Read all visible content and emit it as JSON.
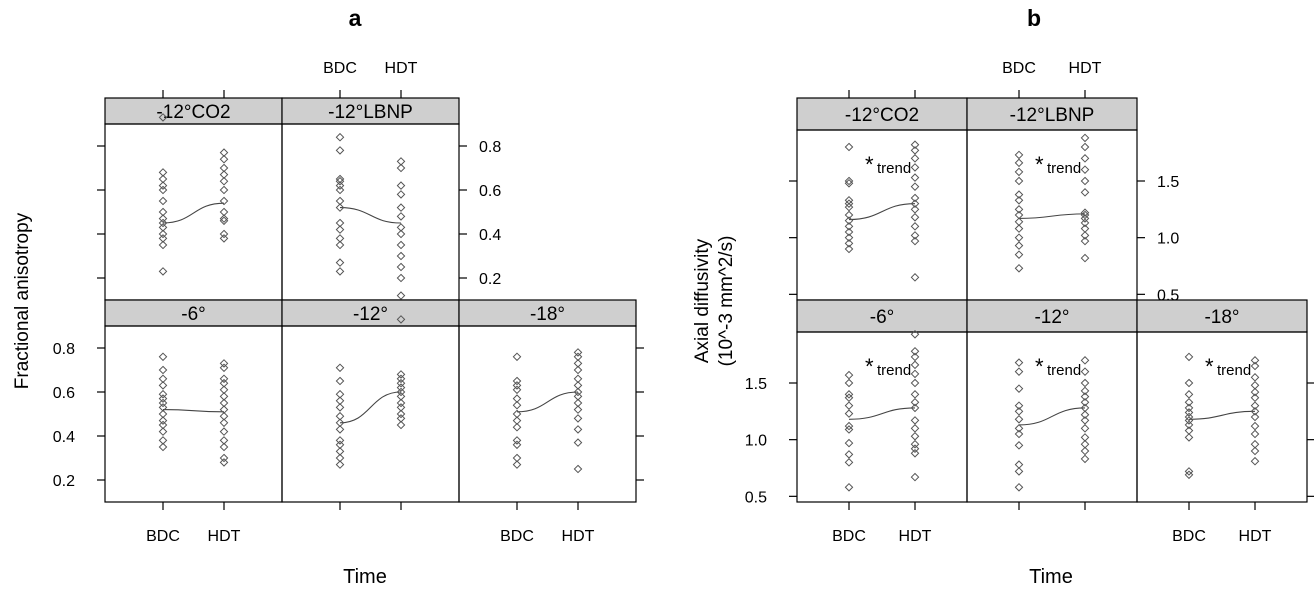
{
  "chart_data": [
    {
      "type": "scatter",
      "title": "a",
      "xlabel": "Time",
      "ylabel": "Fractional anisotropy",
      "categories": [
        "BDC",
        "HDT"
      ],
      "ylim": [
        0.1,
        0.9
      ],
      "yticks": [
        "0.2",
        "0.4",
        "0.6",
        "0.8"
      ],
      "panels": [
        {
          "label": "-12°CO2",
          "line": [
            0.45,
            0.54
          ],
          "annotation": "",
          "BDC": [
            0.93,
            0.68,
            0.65,
            0.62,
            0.6,
            0.55,
            0.5,
            0.47,
            0.45,
            0.43,
            0.4,
            0.38,
            0.35,
            0.23
          ],
          "HDT": [
            0.77,
            0.74,
            0.7,
            0.67,
            0.64,
            0.6,
            0.55,
            0.5,
            0.47,
            0.46,
            0.4,
            0.38
          ]
        },
        {
          "label": "-12°LBNP",
          "line": [
            0.52,
            0.45
          ],
          "annotation": "",
          "BDC": [
            0.84,
            0.78,
            0.65,
            0.64,
            0.62,
            0.6,
            0.55,
            0.52,
            0.45,
            0.42,
            0.38,
            0.35,
            0.27,
            0.23
          ],
          "HDT": [
            0.73,
            0.7,
            0.62,
            0.58,
            0.52,
            0.48,
            0.43,
            0.4,
            0.35,
            0.3,
            0.25,
            0.2,
            0.12
          ]
        },
        {
          "label": "-6°",
          "line": [
            0.52,
            0.51
          ],
          "annotation": "",
          "BDC": [
            0.76,
            0.7,
            0.66,
            0.63,
            0.59,
            0.57,
            0.55,
            0.53,
            0.5,
            0.47,
            0.45,
            0.42,
            0.38,
            0.35
          ],
          "HDT": [
            0.73,
            0.71,
            0.66,
            0.64,
            0.61,
            0.58,
            0.55,
            0.52,
            0.49,
            0.46,
            0.42,
            0.38,
            0.35,
            0.3,
            0.28
          ]
        },
        {
          "label": "-12°",
          "line": [
            0.46,
            0.6
          ],
          "annotation": "",
          "BDC": [
            0.71,
            0.65,
            0.59,
            0.56,
            0.53,
            0.49,
            0.46,
            0.43,
            0.38,
            0.36,
            0.33,
            0.3,
            0.27
          ],
          "HDT": [
            0.93,
            0.68,
            0.66,
            0.64,
            0.62,
            0.6,
            0.58,
            0.55,
            0.53,
            0.5,
            0.48,
            0.45
          ]
        },
        {
          "label": "-18°",
          "line": [
            0.51,
            0.6
          ],
          "annotation": "",
          "BDC": [
            0.76,
            0.65,
            0.63,
            0.61,
            0.57,
            0.54,
            0.5,
            0.47,
            0.44,
            0.38,
            0.36,
            0.3,
            0.27
          ],
          "HDT": [
            0.78,
            0.76,
            0.73,
            0.7,
            0.66,
            0.63,
            0.6,
            0.58,
            0.55,
            0.52,
            0.48,
            0.43,
            0.37,
            0.25
          ]
        }
      ]
    },
    {
      "type": "scatter",
      "title": "b",
      "xlabel": "Time",
      "ylabel": "Axial diffusivity\n(10^-3 mm^2/s)",
      "categories": [
        "BDC",
        "HDT"
      ],
      "ylim": [
        0.45,
        1.95
      ],
      "yticks": [
        "0.5",
        "1.0",
        "1.5"
      ],
      "panels": [
        {
          "label": "-12°CO2",
          "line": [
            1.16,
            1.3
          ],
          "annotation": "trend",
          "BDC": [
            1.8,
            1.5,
            1.48,
            1.33,
            1.3,
            1.27,
            1.2,
            1.15,
            1.1,
            1.05,
            1.0,
            0.95,
            0.9
          ],
          "HDT": [
            1.82,
            1.77,
            1.7,
            1.62,
            1.53,
            1.45,
            1.35,
            1.3,
            1.25,
            1.18,
            1.1,
            1.02,
            0.97,
            0.65
          ]
        },
        {
          "label": "-12°LBNP",
          "line": [
            1.17,
            1.21
          ],
          "annotation": "trend",
          "BDC": [
            1.73,
            1.66,
            1.58,
            1.5,
            1.38,
            1.33,
            1.25,
            1.2,
            1.14,
            1.08,
            1.0,
            0.93,
            0.85,
            0.73
          ],
          "HDT": [
            1.88,
            1.8,
            1.7,
            1.6,
            1.5,
            1.4,
            1.22,
            1.2,
            1.17,
            1.13,
            1.08,
            1.02,
            0.97,
            0.82
          ]
        },
        {
          "label": "-6°",
          "line": [
            1.18,
            1.28
          ],
          "annotation": "trend",
          "BDC": [
            1.57,
            1.5,
            1.4,
            1.37,
            1.3,
            1.23,
            1.12,
            1.09,
            0.97,
            0.87,
            0.8,
            0.58
          ],
          "HDT": [
            1.93,
            1.78,
            1.73,
            1.66,
            1.58,
            1.5,
            1.4,
            1.33,
            1.28,
            1.17,
            1.1,
            1.03,
            0.96,
            0.92,
            0.88,
            0.67
          ]
        },
        {
          "label": "-12°",
          "line": [
            1.13,
            1.28
          ],
          "annotation": "trend",
          "BDC": [
            1.68,
            1.6,
            1.45,
            1.3,
            1.25,
            1.18,
            1.1,
            1.05,
            0.95,
            0.78,
            0.72,
            0.58
          ],
          "HDT": [
            1.7,
            1.6,
            1.5,
            1.43,
            1.38,
            1.33,
            1.28,
            1.22,
            1.17,
            1.1,
            1.02,
            0.96,
            0.9,
            0.83
          ]
        },
        {
          "label": "-18°",
          "line": [
            1.18,
            1.25
          ],
          "annotation": "trend",
          "BDC": [
            1.73,
            1.5,
            1.4,
            1.33,
            1.28,
            1.24,
            1.2,
            1.17,
            1.13,
            1.08,
            1.02,
            0.72,
            0.69
          ],
          "HDT": [
            1.7,
            1.65,
            1.55,
            1.48,
            1.42,
            1.37,
            1.3,
            1.25,
            1.2,
            1.12,
            1.05,
            0.96,
            0.9,
            0.81
          ]
        }
      ]
    }
  ]
}
